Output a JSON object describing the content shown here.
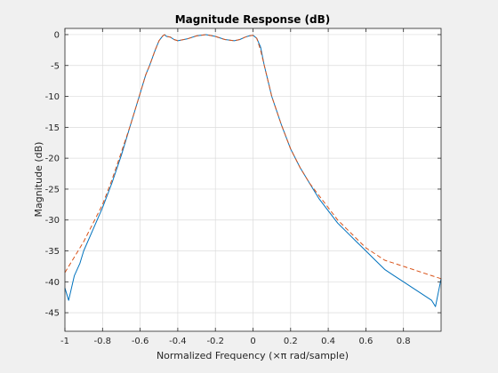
{
  "chart_data": {
    "type": "line",
    "title": "Magnitude Response (dB)",
    "xlabel": "Normalized Frequency (×π rad/sample)",
    "ylabel": "Magnitude (dB)",
    "xlim": [
      -1,
      1
    ],
    "ylim": [
      -48,
      1
    ],
    "xticks": [
      "-1",
      "-0.8",
      "-0.6",
      "-0.4",
      "-0.2",
      "0",
      "0.2",
      "0.4",
      "0.6",
      "0.8"
    ],
    "yticks": [
      "0",
      "-5",
      "-10",
      "-15",
      "-20",
      "-25",
      "-30",
      "-35",
      "-40",
      "-45"
    ],
    "grid": true,
    "series": [
      {
        "color": "#0072bd",
        "style": "solid",
        "x": [
          -1.0,
          -0.98,
          -0.95,
          -0.92,
          -0.9,
          -0.85,
          -0.8,
          -0.75,
          -0.7,
          -0.65,
          -0.6,
          -0.57,
          -0.55,
          -0.52,
          -0.5,
          -0.48,
          -0.47,
          -0.46,
          -0.44,
          -0.42,
          -0.4,
          -0.35,
          -0.3,
          -0.25,
          -0.2,
          -0.15,
          -0.1,
          -0.07,
          -0.04,
          -0.02,
          0.0,
          0.02,
          0.04,
          0.05,
          0.06,
          0.08,
          0.1,
          0.15,
          0.2,
          0.25,
          0.3,
          0.35,
          0.4,
          0.45,
          0.5,
          0.55,
          0.6,
          0.65,
          0.7,
          0.75,
          0.8,
          0.85,
          0.9,
          0.95,
          0.97,
          0.99,
          1.0
        ],
        "y": [
          -41.0,
          -43.0,
          -39.0,
          -37.0,
          -35.0,
          -31.5,
          -28.0,
          -24.0,
          -19.5,
          -14.5,
          -9.5,
          -6.5,
          -5.0,
          -2.5,
          -1.0,
          -0.2,
          0.0,
          -0.3,
          -0.4,
          -0.8,
          -1.0,
          -0.7,
          -0.2,
          0.0,
          -0.3,
          -0.8,
          -1.0,
          -0.8,
          -0.4,
          -0.2,
          -0.1,
          -0.6,
          -2.0,
          -3.5,
          -5.0,
          -7.5,
          -10.0,
          -14.5,
          -18.5,
          -21.5,
          -24.0,
          -26.5,
          -28.5,
          -30.5,
          -32.0,
          -33.5,
          -35.0,
          -36.5,
          -38.0,
          -39.0,
          -40.0,
          -41.0,
          -42.0,
          -43.0,
          -44.0,
          -41.0,
          -39.5
        ]
      },
      {
        "color": "#d95319",
        "style": "dashed",
        "x": [
          -1.0,
          -0.95,
          -0.9,
          -0.85,
          -0.8,
          -0.75,
          -0.7,
          -0.65,
          -0.6,
          -0.57,
          -0.55,
          -0.52,
          -0.5,
          -0.48,
          -0.47,
          -0.46,
          -0.44,
          -0.42,
          -0.4,
          -0.35,
          -0.3,
          -0.25,
          -0.2,
          -0.15,
          -0.1,
          -0.07,
          -0.04,
          -0.02,
          0.0,
          0.02,
          0.04,
          0.06,
          0.08,
          0.1,
          0.15,
          0.2,
          0.25,
          0.3,
          0.35,
          0.4,
          0.45,
          0.5,
          0.55,
          0.6,
          0.65,
          0.7,
          0.75,
          0.8,
          0.85,
          0.9,
          0.95,
          1.0
        ],
        "y": [
          -38.5,
          -36.0,
          -33.5,
          -30.5,
          -27.5,
          -23.5,
          -19.0,
          -14.5,
          -9.5,
          -6.5,
          -5.0,
          -2.5,
          -1.0,
          -0.2,
          0.0,
          -0.3,
          -0.4,
          -0.8,
          -1.0,
          -0.7,
          -0.2,
          0.0,
          -0.3,
          -0.8,
          -1.0,
          -0.8,
          -0.4,
          -0.2,
          -0.1,
          -0.6,
          -2.5,
          -5.0,
          -7.5,
          -10.0,
          -14.5,
          -18.5,
          -21.5,
          -24.0,
          -26.0,
          -28.0,
          -30.0,
          -31.5,
          -33.0,
          -34.5,
          -35.5,
          -36.5,
          -37.0,
          -37.5,
          -38.0,
          -38.5,
          -39.0,
          -39.5
        ]
      }
    ]
  }
}
